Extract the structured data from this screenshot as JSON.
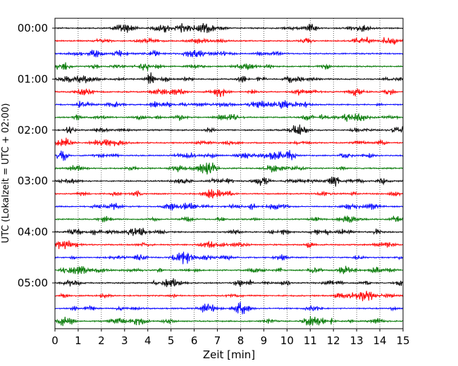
{
  "chart_data": {
    "type": "line",
    "title": "",
    "xlabel": "Zeit  [min]",
    "ylabel": "UTC (Lokalzeit = UTC + 02:00)",
    "xlim": [
      0,
      15
    ],
    "x_ticks": [
      "0",
      "1",
      "2",
      "3",
      "4",
      "5",
      "6",
      "7",
      "8",
      "9",
      "10",
      "11",
      "12",
      "13",
      "14",
      "15"
    ],
    "y_ticks": [
      "00:00",
      "01:00",
      "02:00",
      "03:00",
      "04:00",
      "05:00"
    ],
    "grid": "vertical dotted",
    "traces_per_hour": 4,
    "trace_minutes": 15,
    "trace_count": 24,
    "trace_colors": [
      "#000000",
      "#ff0000",
      "#0000ff",
      "#007700"
    ]
  }
}
